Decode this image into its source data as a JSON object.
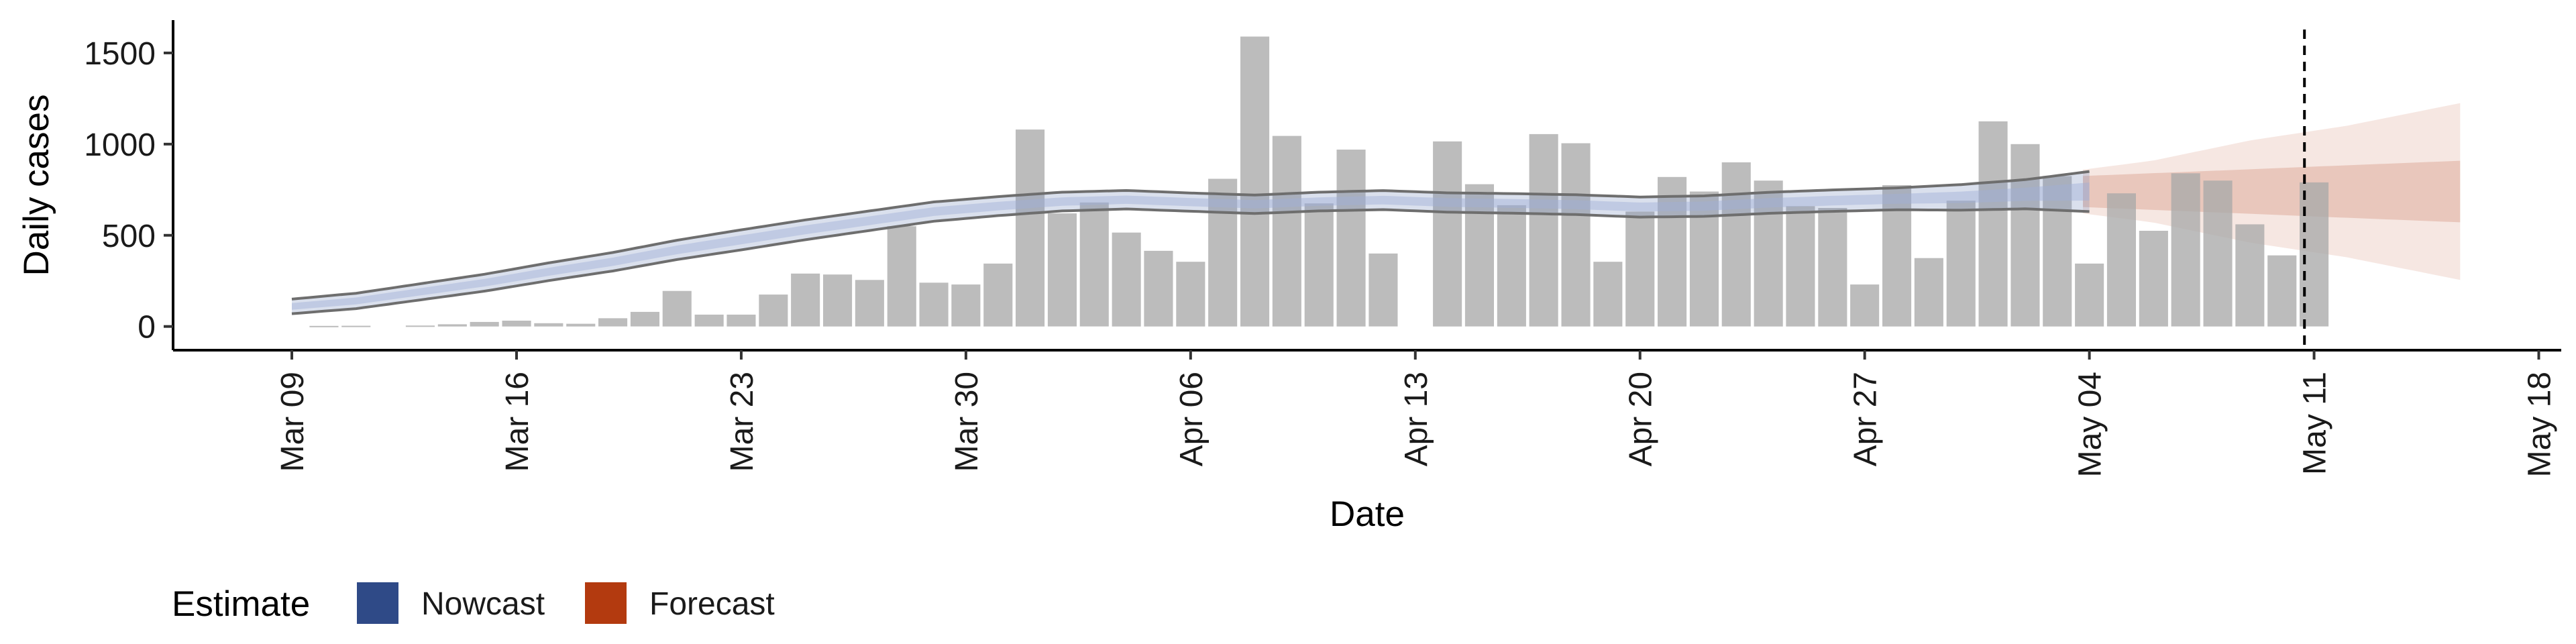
{
  "chart_data": {
    "type": "bar",
    "xlabel": "Date",
    "ylabel": "Daily cases",
    "ylim": [
      -130,
      1680
    ],
    "yticks": [
      0,
      500,
      1000,
      1500
    ],
    "x_day_range": [
      -3.7,
      70.7
    ],
    "xticks": [
      {
        "day": 0,
        "label": "Mar 09"
      },
      {
        "day": 7,
        "label": "Mar 16"
      },
      {
        "day": 14,
        "label": "Mar 23"
      },
      {
        "day": 21,
        "label": "Mar 30"
      },
      {
        "day": 28,
        "label": "Apr 06"
      },
      {
        "day": 35,
        "label": "Apr 13"
      },
      {
        "day": 42,
        "label": "Apr 20"
      },
      {
        "day": 49,
        "label": "Apr 27"
      },
      {
        "day": 56,
        "label": "May 04"
      },
      {
        "day": 63,
        "label": "May 11"
      },
      {
        "day": 70,
        "label": "May 18"
      }
    ],
    "bar_start": "Mar 09",
    "cases": [
      0,
      3,
      4,
      0,
      5,
      12,
      25,
      32,
      18,
      15,
      45,
      80,
      195,
      65,
      65,
      175,
      290,
      285,
      255,
      550,
      240,
      230,
      345,
      1080,
      620,
      680,
      515,
      415,
      355,
      810,
      1590,
      1045,
      675,
      970,
      400,
      0,
      1015,
      780,
      665,
      1055,
      1005,
      355,
      630,
      820,
      740,
      900,
      800,
      660,
      650,
      230,
      775,
      375,
      690,
      1125,
      1000,
      825,
      345,
      730,
      525,
      840,
      800,
      560,
      390,
      790
    ],
    "nowcast": {
      "name": "Nowcast",
      "color": "#2f4a87",
      "median": [
        [
          0,
          110
        ],
        [
          2,
          140
        ],
        [
          4,
          190
        ],
        [
          6,
          240
        ],
        [
          8,
          300
        ],
        [
          10,
          355
        ],
        [
          12,
          420
        ],
        [
          14,
          475
        ],
        [
          16,
          530
        ],
        [
          18,
          580
        ],
        [
          20,
          630
        ],
        [
          22,
          660
        ],
        [
          24,
          685
        ],
        [
          26,
          695
        ],
        [
          28,
          682
        ],
        [
          30,
          670
        ],
        [
          32,
          685
        ],
        [
          34,
          693
        ],
        [
          36,
          680
        ],
        [
          38,
          675
        ],
        [
          40,
          668
        ],
        [
          42,
          655
        ],
        [
          44,
          660
        ],
        [
          46,
          678
        ],
        [
          48,
          690
        ],
        [
          50,
          700
        ],
        [
          52,
          708
        ],
        [
          54,
          725
        ],
        [
          56,
          740
        ]
      ],
      "half_width": [
        [
          0,
          40
        ],
        [
          14,
          55
        ],
        [
          28,
          50
        ],
        [
          42,
          55
        ],
        [
          50,
          60
        ],
        [
          54,
          80
        ],
        [
          56,
          110
        ]
      ]
    },
    "forecast": {
      "name": "Forecast",
      "color": "#b33a0f",
      "x_start": 55.8,
      "x_end": 67.7,
      "median": 740,
      "inner_half_width": [
        [
          55.8,
          85
        ],
        [
          67.7,
          170
        ]
      ],
      "outer_half_width": [
        [
          55.8,
          120
        ],
        [
          58,
          170
        ],
        [
          61,
          280
        ],
        [
          64,
          360
        ],
        [
          67.7,
          490
        ]
      ]
    },
    "vline_day": 62.7,
    "legend": {
      "position": "bottom-left",
      "title": "Estimate",
      "entries": [
        {
          "label": "Nowcast",
          "color": "#2f4a87"
        },
        {
          "label": "Forecast",
          "color": "#b33a0f"
        }
      ]
    }
  }
}
